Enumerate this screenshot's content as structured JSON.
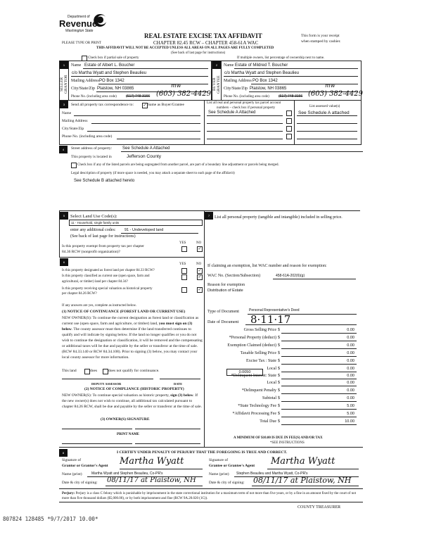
{
  "header": {
    "dept_of": "Department of",
    "dept_name": "Revenue",
    "dept_state": "Washington State",
    "title": "REAL ESTATE EXCISE TAX AFFIDAVIT",
    "chapter": "CHAPTER 82.45 RCW – CHAPTER 458-61A WAC",
    "please_type": "PLEASE TYPE OR PRINT",
    "receipt_line1": "This form is your receipt",
    "receipt_line2": "when stamped by cashier.",
    "warning": "THIS AFFIDAVIT WILL NOT BE ACCEPTED UNLESS ALL AREAS ON ALL PAGES ARE FULLY COMPLETED",
    "see_back": "(See back of last page for instructions)",
    "partial_sale_label": "Check box if partial sale of property",
    "multiple_owners_note": "If multiple owners, list percentage of ownership next to name."
  },
  "seller": {
    "number": "1",
    "side_label": "SELLER GRANTOR",
    "name_label": "Name",
    "name": "Estate of Albert L. Boucher",
    "care_of": "c/o Martha Wyatt and Stephen Beaulieu",
    "mailing_label": "Mailing Address",
    "mailing": "PO Box 1342",
    "city_label": "City/State/Zip",
    "city": "Plaistow, NH 03865",
    "initials": "mw",
    "phone_label": "Phone No. (including area code)",
    "phone_struck": "(617) 748-3166",
    "phone_handwritten": "(603) 382-4429"
  },
  "buyer": {
    "number": "2",
    "side_label": "BUYER GRANTEE",
    "name_label": "Name",
    "name": "Estate of Mildred T. Boucher",
    "care_of": "c/o Martha Wyatt and Stephen Beaulieu",
    "mailing_label": "Mailing Address",
    "mailing": "PO Box 1342",
    "city_label": "City/State/Zip",
    "city": "Plaistow, NH 03865",
    "initials": "mw",
    "phone_label": "Phone No. (including area code)",
    "phone_struck": "(617) 748-3166",
    "phone_handwritten": "(603) 382-4429"
  },
  "section3": {
    "number": "3",
    "send_label": "Send all property tax correspondence to:",
    "same_as_checked": true,
    "same_as": "Same as Buyer/Grantee",
    "name_label": "Name",
    "mailing_label": "Mailing Address",
    "city_label": "City/State/Zip",
    "phone_label": "Phone No. (including area code)",
    "parcel_header_1": "List all real and personal property tax parcel account",
    "parcel_header_2": "numbers – check box if personal property",
    "parcels": [
      "See Schedule A Attached",
      "",
      "",
      ""
    ],
    "assessed_header": "List assessed value(s)",
    "assessed": [
      "See Schedule A attached",
      "",
      "",
      ""
    ]
  },
  "section4": {
    "number": "4",
    "street_label": "Street address of property:",
    "street": "See Schedule A Attached",
    "located_label": "This property is located in",
    "county": "Jefferson County",
    "segregated_label": "Check box if any of the listed parcels are being segregated from another parcel, are part of a boundary line adjustment or parcels being merged.",
    "legal_label": "Legal description of property (if more space is needed, you may attach a separate sheet to each page of the affidavit)",
    "legal": "See Schedule B attached hereto"
  },
  "section5": {
    "number": "5",
    "label": "Select Land Use Code(s):",
    "code": "11 - Household, single family units",
    "additional_label": "enter any additional codes:",
    "additional": "91 - Undeveloped land",
    "see_back": "(See back of last page for instructions)",
    "yes": "YES",
    "no": "NO",
    "exempt_q1": "Is this property exempt from property tax per chapter",
    "exempt_q2": "84.36 RCW (nonprofit organization)?",
    "exempt_answer": "NO"
  },
  "section6": {
    "number": "6",
    "yes": "YES",
    "no": "NO",
    "questions": [
      {
        "line1": "Is this property designated as forest land per chapter 84.33 RCW?",
        "line2": "",
        "answer": "NO"
      },
      {
        "line1": "Is this property classified as current use (open space, farm and",
        "line2": "agricultural, or timber) land per chapter 84.34?",
        "answer": "NO"
      },
      {
        "line1": "Is this property receiving special valuation as historical property",
        "line2": "per chapter 84.26 RCW?",
        "answer": "NO"
      }
    ],
    "if_yes": "If any answers are yes, complete as instructed below.",
    "notice1_title": "(1) NOTICE OF CONTINUANCE (FOREST LAND OR CURRENT USE)",
    "notice1_body_a": "NEW OWNER(S): To continue the current designation as forest land or classification as current use (open space, farm and agriculture, or timber) land, ",
    "notice1_body_bold": "you must sign on (3) below",
    "notice1_body_b": ". The county assessor must then determine if the land transferred continues to qualify and will indicate by signing below. If the land no longer qualifies or you do not wish to continue the designation or classification, it will be removed and the compensating or additional taxes will be due and payable by the seller or transferor at the time of sale. (RCW 84.33.140 or RCW 84.34.108). Prior to signing (3) below, you may contact your local county assessor for more information.",
    "this_land": "This land",
    "does": "does",
    "does_not": "does not qualify for continuance.",
    "deputy_assessor": "DEPUTY ASSESSOR",
    "date": "DATE",
    "notice2_title": "(2) NOTICE OF COMPLIANCE (HISTORIC PROPERTY)",
    "notice2_body_a": "NEW OWNER(S): To continue special valuation as historic property, ",
    "notice2_body_bold": "sign (3) below",
    "notice2_body_b": ". If the new owner(s) does not wish to continue, all additional tax calculated pursuant to chapter 84.26 RCW, shall be due and payable by the seller or transferor at the time of sale.",
    "owner_signature": "(3) OWNER(S) SIGNATURE",
    "print_name": "PRINT NAME"
  },
  "section7": {
    "number": "7",
    "personal_label": "List all personal property (tangible and intangible) included in selling price.",
    "exemption_prompt": "If claiming an exemption, list WAC number and reason for exemption:",
    "wac_label": "WAC No. (Section/Subsection)",
    "wac": "458-61A-202(6)(g)",
    "reason_label": "Reason for exemption",
    "reason": "Distribution of Estate",
    "doc_type_label": "Type of Document",
    "doc_type": "Personal Representative's Deed",
    "doc_date_label": "Date of Document",
    "doc_date": "8·11·17",
    "local_rate": "0.0050",
    "rows": [
      {
        "label": "Gross Selling Price",
        "value": "0.00"
      },
      {
        "label": "*Personal Property (deduct)",
        "value": "0.00"
      },
      {
        "label": "Exemption Claimed (deduct)",
        "value": "0.00"
      },
      {
        "label": "Taxable Selling Price",
        "value": "0.00"
      },
      {
        "label": "Excise Tax : State",
        "value": "0.00"
      },
      {
        "label": "Local",
        "value": "0.00"
      },
      {
        "label": "*Delinquent Interest: State",
        "value": "0.00"
      },
      {
        "label": "Local",
        "value": "0.00"
      },
      {
        "label": "*Delinquent Penalty",
        "value": "0.00"
      },
      {
        "label": "Subtotal",
        "value": "0.00"
      },
      {
        "label": "*State Technology Fee",
        "value": "5.00"
      },
      {
        "label": "*Affidavit Processing Fee",
        "value": "5.00"
      },
      {
        "label": "Total Due",
        "value": "10.00"
      }
    ],
    "currency": "$",
    "minimum": "A MINIMUM OF $10.00 IS DUE IN FEE(S) AND/OR TAX",
    "see_instructions": "*SEE INSTRUCTIONS"
  },
  "section8": {
    "number": "8",
    "certify": "I CERTIFY UNDER PENALTY OF PERJURY THAT THE FOREGOING IS TRUE AND CORRECT.",
    "sig_of": "Signature of",
    "grantor_agent": "Grantor or Grantor's Agent",
    "grantee_agent": "Grantee or Grantee's Agent",
    "grantor_signature": "Martha Wyatt",
    "grantee_signature": "Martha Wyatt",
    "name_label": "Name (print)",
    "grantor_name": "Martha Wyatt and Stephen Beaulieu, Co-PR's",
    "grantee_name": "Stephen Beaulieu and Martha Wyatt, Co-PR's",
    "date_label": "Date & city of signing:",
    "grantor_date": "08/11/17 at Plaistow, NH",
    "grantee_date": "08/11/17 at Plaistow, NH",
    "perjury_label": "Perjury:",
    "perjury_text": "Perjury is a class C felony which is punishable by imprisonment in the state correctional institution for a maximum term of not more than five years, or by a fine in an amount fixed by the court of not more than five thousand dollars ($5,000.00), or by both imprisonment and fine (RCW 9A.20.020 (1C)).",
    "county_treasurer": "COUNTY TREASURER"
  },
  "footer_stamp": "807824 128485 *9/7/2017 10.00*"
}
